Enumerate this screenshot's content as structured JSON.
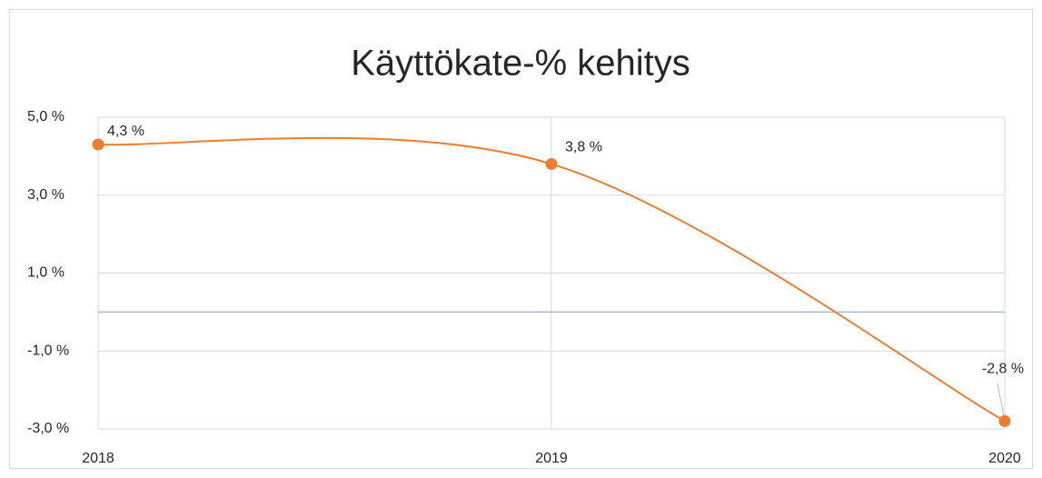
{
  "chart_data": {
    "type": "line",
    "title": "Käyttökate-% kehitys",
    "categories": [
      "2018",
      "2019",
      "2020"
    ],
    "values": [
      4.3,
      3.8,
      -2.8
    ],
    "value_labels": [
      "4,3 %",
      "3,8 %",
      "-2,8 %"
    ],
    "color": "#ed7d31",
    "ylim": [
      -3,
      5
    ],
    "yticks": [
      {
        "value": 5,
        "label": "5,0 %"
      },
      {
        "value": 3,
        "label": "3,0 %"
      },
      {
        "value": 1,
        "label": "1,0 %"
      },
      {
        "value": -1,
        "label": "-1,0 %"
      },
      {
        "value": -3,
        "label": "-3,0 %"
      }
    ],
    "grid": true,
    "smooth": true
  }
}
